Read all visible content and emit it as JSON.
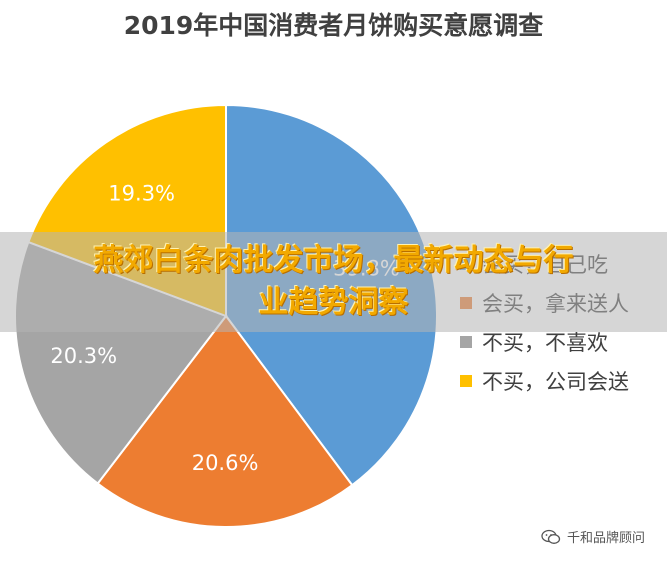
{
  "chart_data": {
    "type": "pie",
    "title": "2019年中国消费者月饼购买意愿调查",
    "slices": [
      {
        "label": "会买，自己吃",
        "value": 39.8,
        "display": "39.8%",
        "color": "#5b9bd5"
      },
      {
        "label": "会买，拿来送人",
        "value": 20.6,
        "display": "20.6%",
        "color": "#ed7d31"
      },
      {
        "label": "不买，不喜欢",
        "value": 20.3,
        "display": "20.3%",
        "color": "#a5a5a5"
      },
      {
        "label": "不买，公司会送",
        "value": 19.3,
        "display": "19.3%",
        "color": "#ffc000"
      }
    ],
    "legend_position": "right",
    "start_angle_deg": 0,
    "direction": "clockwise"
  },
  "overlay": {
    "line1": "燕郊白条肉批发市场，最新动态与行",
    "line2": "业趋势洞察"
  },
  "watermark": {
    "text": "千和品牌顾问",
    "icon": "wechat-icon"
  }
}
